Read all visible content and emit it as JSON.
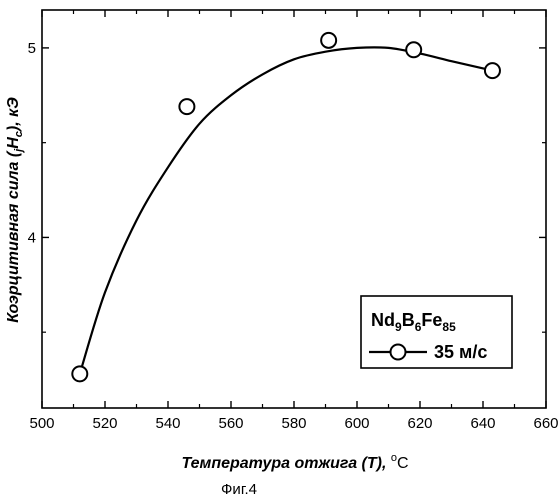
{
  "chart_data": {
    "type": "scatter",
    "title": "",
    "xlabel": {
      "main": "Температура отжига (T), ",
      "unit_sup": "o",
      "unit": "C"
    },
    "ylabel": {
      "prefix": "Коэрцитивная сила (",
      "H_sub_before": "j",
      "H": "H",
      "H_sub_after": "c",
      "suffix": "), кЭ"
    },
    "xlim": [
      500,
      660
    ],
    "ylim": [
      3.1,
      5.2
    ],
    "x_ticks": [
      "500",
      "520",
      "540",
      "560",
      "580",
      "600",
      "620",
      "640",
      "660"
    ],
    "y_ticks": [
      "4",
      "5"
    ],
    "grid": false,
    "series": [
      {
        "name": "35 м/с",
        "marker": "open-circle",
        "points": [
          {
            "x": 512,
            "y": 3.28
          },
          {
            "x": 546,
            "y": 4.69
          },
          {
            "x": 591,
            "y": 5.04
          },
          {
            "x": 618,
            "y": 4.99
          },
          {
            "x": 643,
            "y": 4.88
          }
        ],
        "fit_curve": [
          {
            "x": 512,
            "y": 3.28
          },
          {
            "x": 520,
            "y": 3.71
          },
          {
            "x": 530,
            "y": 4.09
          },
          {
            "x": 540,
            "y": 4.37
          },
          {
            "x": 550,
            "y": 4.6
          },
          {
            "x": 560,
            "y": 4.75
          },
          {
            "x": 570,
            "y": 4.86
          },
          {
            "x": 580,
            "y": 4.94
          },
          {
            "x": 590,
            "y": 4.98
          },
          {
            "x": 600,
            "y": 5.0
          },
          {
            "x": 610,
            "y": 5.0
          },
          {
            "x": 620,
            "y": 4.97
          },
          {
            "x": 630,
            "y": 4.93
          },
          {
            "x": 643,
            "y": 4.88
          }
        ]
      }
    ],
    "legend": {
      "position": "bottom-right",
      "formula": [
        {
          "text": "Nd",
          "sub": "9"
        },
        {
          "text": "B",
          "sub": "6"
        },
        {
          "text": "Fe",
          "sub": "85"
        }
      ],
      "entry_label": "35 м/с"
    }
  },
  "caption": "Фиг.4",
  "colors": {
    "line": "#000000",
    "marker_fill": "#ffffff",
    "background": "#ffffff"
  }
}
